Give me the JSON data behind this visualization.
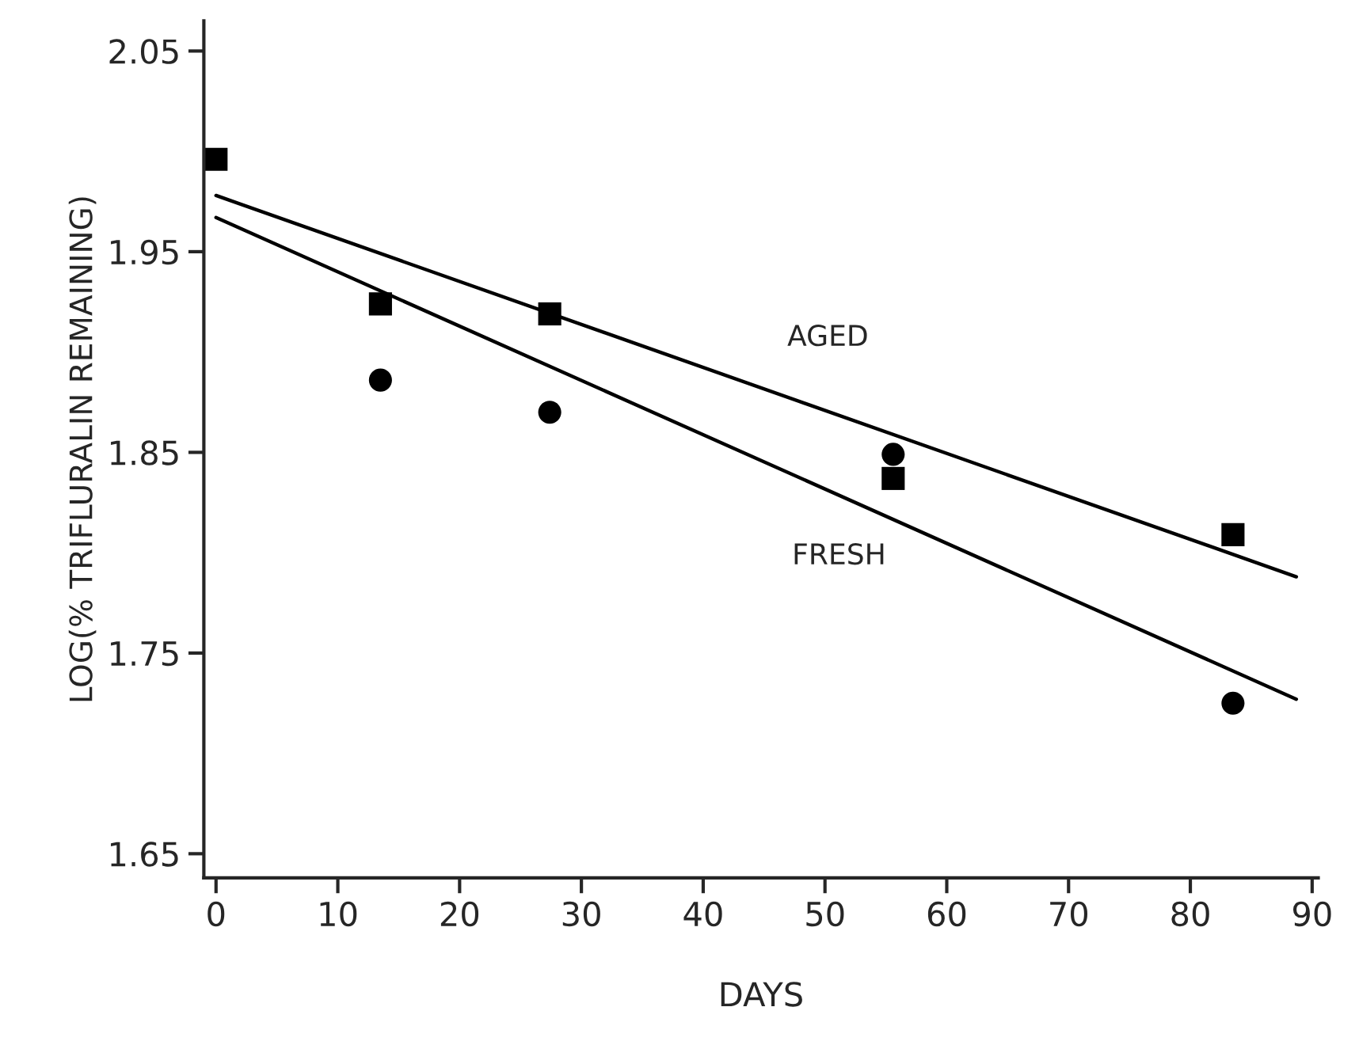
{
  "chart_data": {
    "type": "scatter",
    "xlabel": "DAYS",
    "ylabel": "LOG(% TRIFLURALIN REMAINING)",
    "xlim": [
      -1,
      90.5
    ],
    "ylim": [
      1.638,
      2.065
    ],
    "xticks": [
      0,
      10,
      20,
      30,
      40,
      50,
      60,
      70,
      80,
      90
    ],
    "yticks": [
      1.65,
      1.75,
      1.85,
      1.95,
      2.05
    ],
    "grid": false,
    "legend": false,
    "series": [
      {
        "marker": "square",
        "color": "#000000",
        "x": [
          0,
          13.5,
          27.4,
          55.6,
          83.5
        ],
        "values": [
          1.996,
          1.924,
          1.919,
          1.837,
          1.809
        ]
      },
      {
        "marker": "circle",
        "color": "#000000",
        "x": [
          13.5,
          27.4,
          55.6,
          83.5
        ],
        "values": [
          1.886,
          1.87,
          1.849,
          1.725
        ]
      },
      {
        "type": "line",
        "line_style": "solid",
        "color": "#000000",
        "x": [
          0,
          88.7
        ],
        "values": [
          1.978,
          1.788
        ]
      },
      {
        "type": "line",
        "line_style": "solid",
        "color": "#000000",
        "x": [
          0,
          88.7
        ],
        "values": [
          1.967,
          1.727
        ]
      }
    ],
    "annotations": [
      "AGED",
      "FRESH"
    ]
  }
}
